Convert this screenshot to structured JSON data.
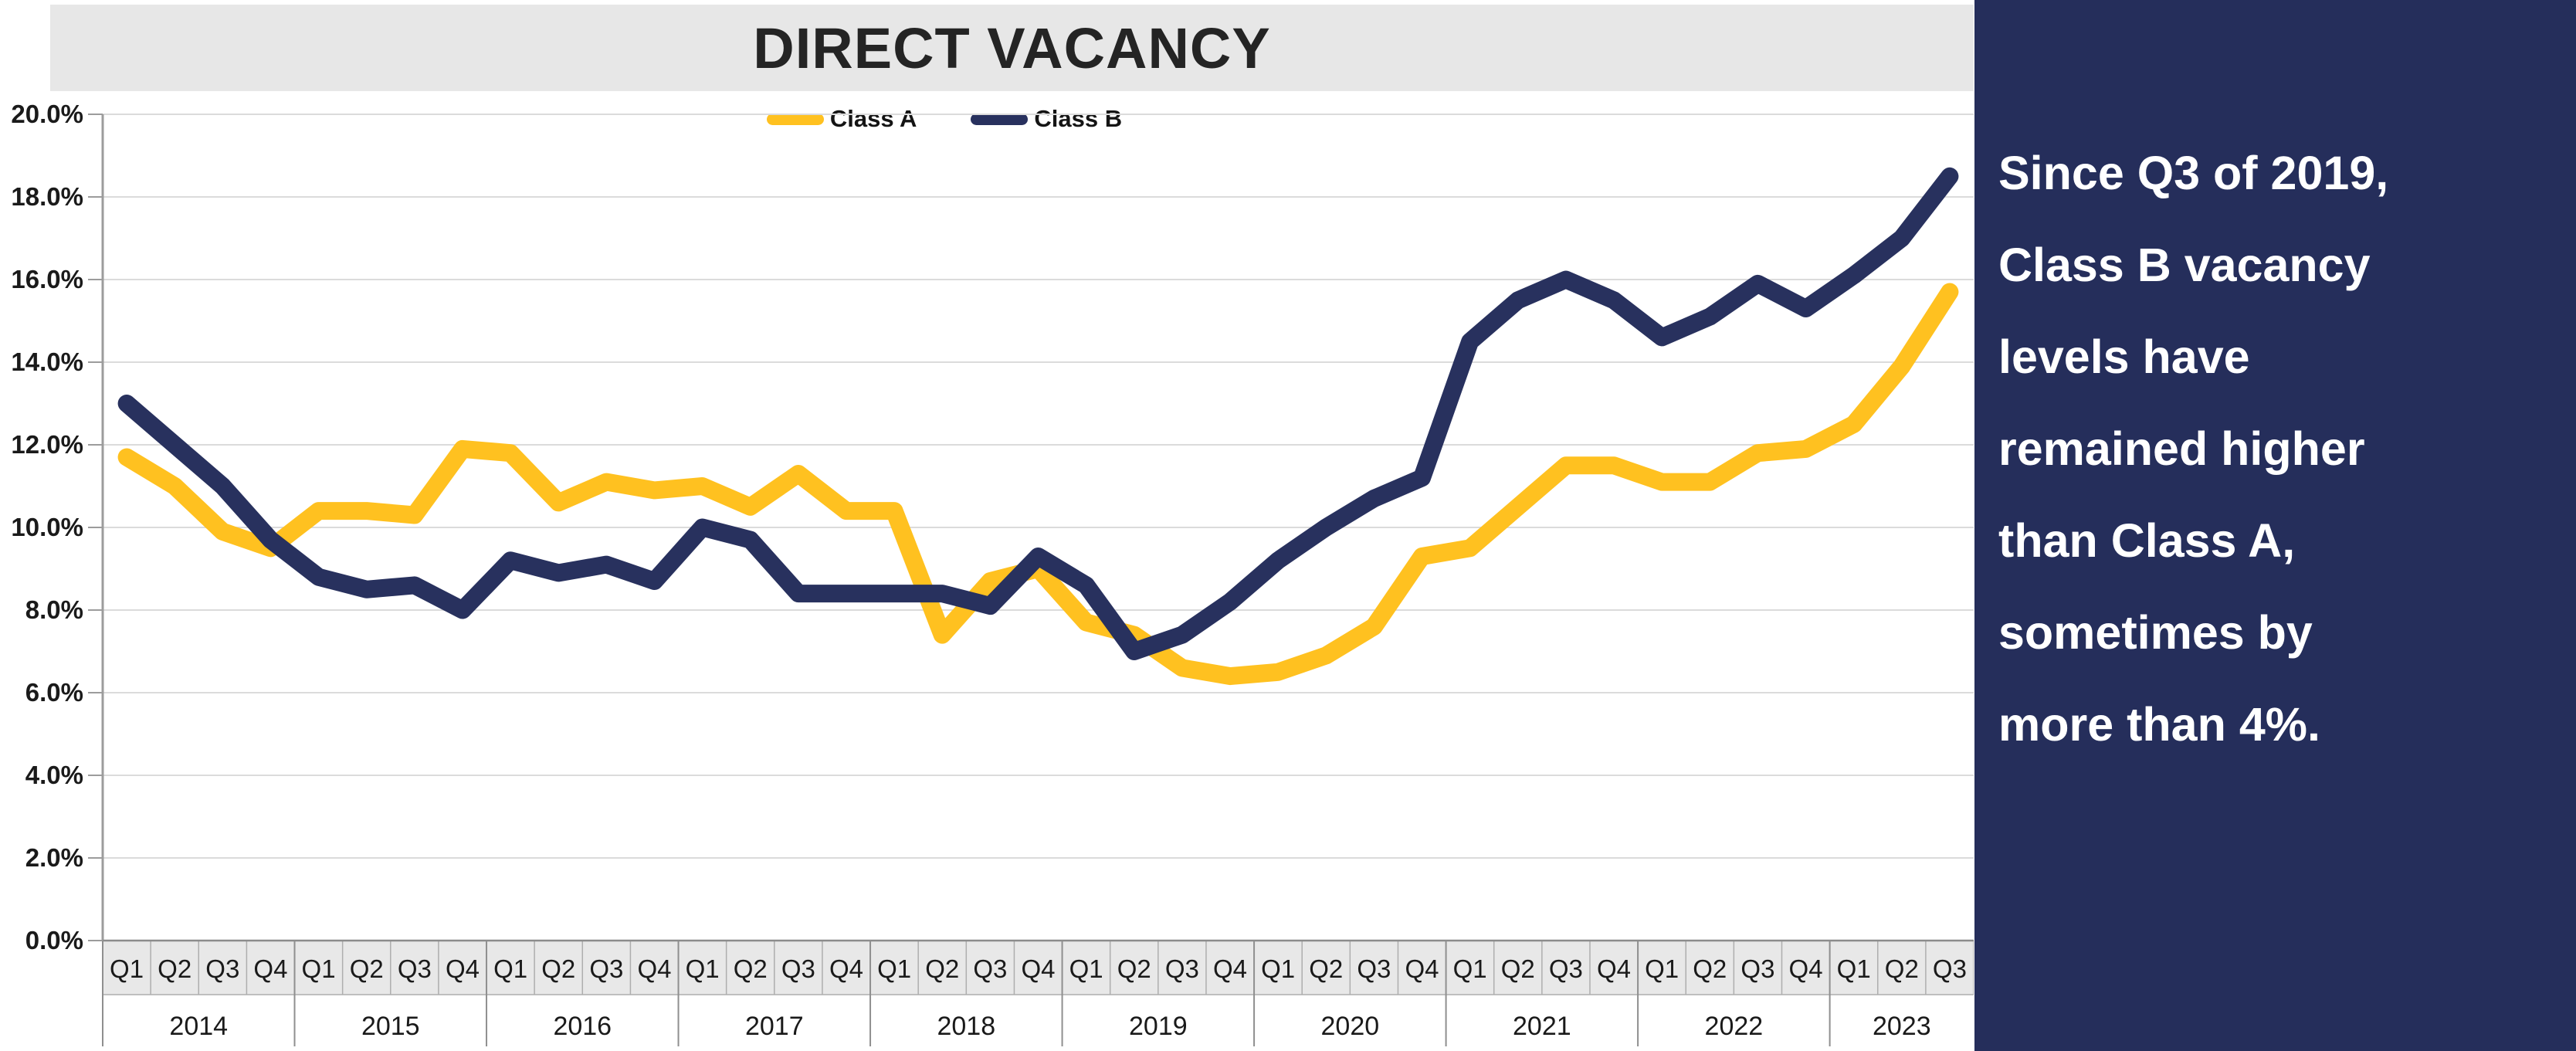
{
  "title": "DIRECT VACANCY",
  "sidebar": {
    "background": "#252e5b",
    "text": "Since Q3 of 2019, Class B vacancy levels have remained higher than Class A, sometimes by more than 4%.",
    "lines": [
      "Since Q3 of 2019,",
      "Class B vacancy",
      "levels have",
      "remained higher",
      "than Class A,",
      "sometimes by",
      "more than 4%."
    ]
  },
  "chart_data": {
    "type": "line",
    "title": "DIRECT VACANCY",
    "ylim": [
      0,
      20
    ],
    "ytick_step": 2,
    "ytick_labels": [
      "0.0%",
      "2.0%",
      "4.0%",
      "6.0%",
      "8.0%",
      "10.0%",
      "12.0%",
      "14.0%",
      "16.0%",
      "18.0%",
      "20.0%"
    ],
    "grid": true,
    "legend_position": "top-center",
    "years": [
      {
        "label": "2014",
        "quarters": [
          "Q1",
          "Q2",
          "Q3",
          "Q4"
        ]
      },
      {
        "label": "2015",
        "quarters": [
          "Q1",
          "Q2",
          "Q3",
          "Q4"
        ]
      },
      {
        "label": "2016",
        "quarters": [
          "Q1",
          "Q2",
          "Q3",
          "Q4"
        ]
      },
      {
        "label": "2017",
        "quarters": [
          "Q1",
          "Q2",
          "Q3",
          "Q4"
        ]
      },
      {
        "label": "2018",
        "quarters": [
          "Q1",
          "Q2",
          "Q3",
          "Q4"
        ]
      },
      {
        "label": "2019",
        "quarters": [
          "Q1",
          "Q2",
          "Q3",
          "Q4"
        ]
      },
      {
        "label": "2020",
        "quarters": [
          "Q1",
          "Q2",
          "Q3",
          "Q4"
        ]
      },
      {
        "label": "2021",
        "quarters": [
          "Q1",
          "Q2",
          "Q3",
          "Q4"
        ]
      },
      {
        "label": "2022",
        "quarters": [
          "Q1",
          "Q2",
          "Q3",
          "Q4"
        ]
      },
      {
        "label": "2023",
        "quarters": [
          "Q1",
          "Q2",
          "Q3"
        ]
      }
    ],
    "series": [
      {
        "name": "Class A",
        "color": "#ffc120",
        "values": [
          11.7,
          11.0,
          9.9,
          9.5,
          10.4,
          10.4,
          10.3,
          11.9,
          11.8,
          10.6,
          11.1,
          10.9,
          11.0,
          10.5,
          11.3,
          10.4,
          10.4,
          7.4,
          8.7,
          9.0,
          7.7,
          7.4,
          6.6,
          6.4,
          6.5,
          6.9,
          7.6,
          9.3,
          9.5,
          10.5,
          11.5,
          11.5,
          11.1,
          11.1,
          11.8,
          11.9,
          12.5,
          13.9,
          15.7
        ]
      },
      {
        "name": "Class B",
        "color": "#28315e",
        "values": [
          13.0,
          12.0,
          11.0,
          9.7,
          8.8,
          8.5,
          8.6,
          8.0,
          9.2,
          8.9,
          9.1,
          8.7,
          10.0,
          9.7,
          8.4,
          8.4,
          8.4,
          8.4,
          8.1,
          9.3,
          8.6,
          7.0,
          7.4,
          8.2,
          9.2,
          10.0,
          10.7,
          11.2,
          14.5,
          15.5,
          16.0,
          15.5,
          14.6,
          15.1,
          15.9,
          15.3,
          16.1,
          17.0,
          18.5
        ]
      }
    ],
    "colors": {
      "grid": "#dbdbdb",
      "axis": "#9c9c9c",
      "tick_text": "#1a1a1a",
      "quarter_band_bg": "#e8e8e8",
      "cell_border": "#aeaeae",
      "year_separator": "#8f8f8f",
      "axis_top_border": "#8c8c8c"
    }
  }
}
